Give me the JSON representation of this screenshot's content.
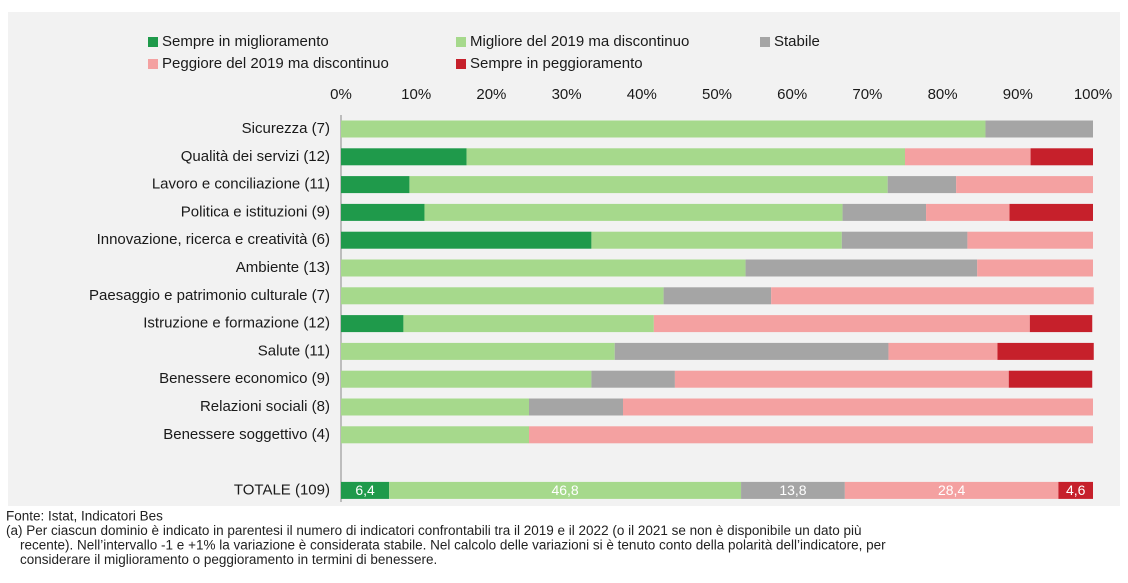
{
  "chart_data": {
    "type": "stacked-bar-horizontal",
    "categories": [
      "Sicurezza (7)",
      "Qualità dei servizi (12)",
      "Lavoro e conciliazione (11)",
      "Politica e istituzioni (9)",
      "Innovazione, ricerca e creatività (6)",
      "Ambiente (13)",
      "Paesaggio e patrimonio culturale (7)",
      "Istruzione e formazione (12)",
      "Salute (11)",
      "Benessere economico (9)",
      "Relazioni sociali (8)",
      "Benessere soggettivo (4)",
      null,
      "TOTALE (109)"
    ],
    "series": [
      {
        "name": "Sempre in miglioramento",
        "color": "#1f9a4b",
        "values": [
          0,
          16.7,
          9.1,
          11.1,
          33.3,
          0,
          0,
          8.3,
          0,
          0,
          0,
          0,
          null,
          6.4
        ],
        "value_labels": [
          null,
          null,
          null,
          null,
          null,
          null,
          null,
          null,
          null,
          null,
          null,
          null,
          null,
          "6,4"
        ]
      },
      {
        "name": "Migliore del 2019 ma discontinuo",
        "color": "#a6d98c",
        "values": [
          85.7,
          58.3,
          63.6,
          55.6,
          33.3,
          53.8,
          42.9,
          33.3,
          36.4,
          33.3,
          25,
          25,
          null,
          46.8
        ],
        "value_labels": [
          null,
          null,
          null,
          null,
          null,
          null,
          null,
          null,
          null,
          null,
          null,
          null,
          null,
          "46,8"
        ]
      },
      {
        "name": "Stabile",
        "color": "#a5a5a5",
        "values": [
          14.3,
          0,
          9.1,
          11.1,
          16.7,
          30.8,
          14.3,
          0,
          36.4,
          11.1,
          12.5,
          0,
          null,
          13.8
        ],
        "value_labels": [
          null,
          null,
          null,
          null,
          null,
          null,
          null,
          null,
          null,
          null,
          null,
          null,
          null,
          "13,8"
        ]
      },
      {
        "name": "Peggiore del 2019 ma discontinuo",
        "color": "#f4a1a1",
        "values": [
          0,
          16.7,
          18.2,
          11.1,
          16.7,
          15.4,
          42.9,
          50,
          14.5,
          44.4,
          62.5,
          75,
          null,
          28.4
        ],
        "value_labels": [
          null,
          null,
          null,
          null,
          null,
          null,
          null,
          null,
          null,
          null,
          null,
          null,
          null,
          "28,4"
        ]
      },
      {
        "name": "Sempre in peggioramento",
        "color": "#c6202b",
        "values": [
          0,
          8.3,
          0,
          11.1,
          0,
          0,
          0,
          8.3,
          12.8,
          11.1,
          0,
          0,
          null,
          4.6
        ],
        "value_labels": [
          null,
          null,
          null,
          null,
          null,
          null,
          null,
          null,
          null,
          null,
          null,
          null,
          null,
          "4,6"
        ]
      }
    ],
    "xlim": [
      0,
      100
    ],
    "xticks": [
      {
        "value": 0,
        "label": "0%"
      },
      {
        "value": 10,
        "label": "10%"
      },
      {
        "value": 20,
        "label": "20%"
      },
      {
        "value": 30,
        "label": "30%"
      },
      {
        "value": 40,
        "label": "40%"
      },
      {
        "value": 50,
        "label": "50%"
      },
      {
        "value": 60,
        "label": "60%"
      },
      {
        "value": 70,
        "label": "70%"
      },
      {
        "value": 80,
        "label": "80%"
      },
      {
        "value": 90,
        "label": "90%"
      },
      {
        "value": 100,
        "label": "100%"
      }
    ],
    "grid": false,
    "notes": [
      "Fonte: Istat, Indicatori Bes",
      "(a) Per ciascun dominio è indicato in parentesi il numero di indicatori confrontabili tra il 2019 e il 2022 (o il 2021 se non è disponibile un dato più",
      "recente). Nell’intervallo -1 e +1% la variazione è considerata stabile. Nel calcolo delle variazioni si è tenuto conto della polarità dell’indicatore, per",
      "considerare il miglioramento o peggioramento in termini di benessere."
    ]
  }
}
